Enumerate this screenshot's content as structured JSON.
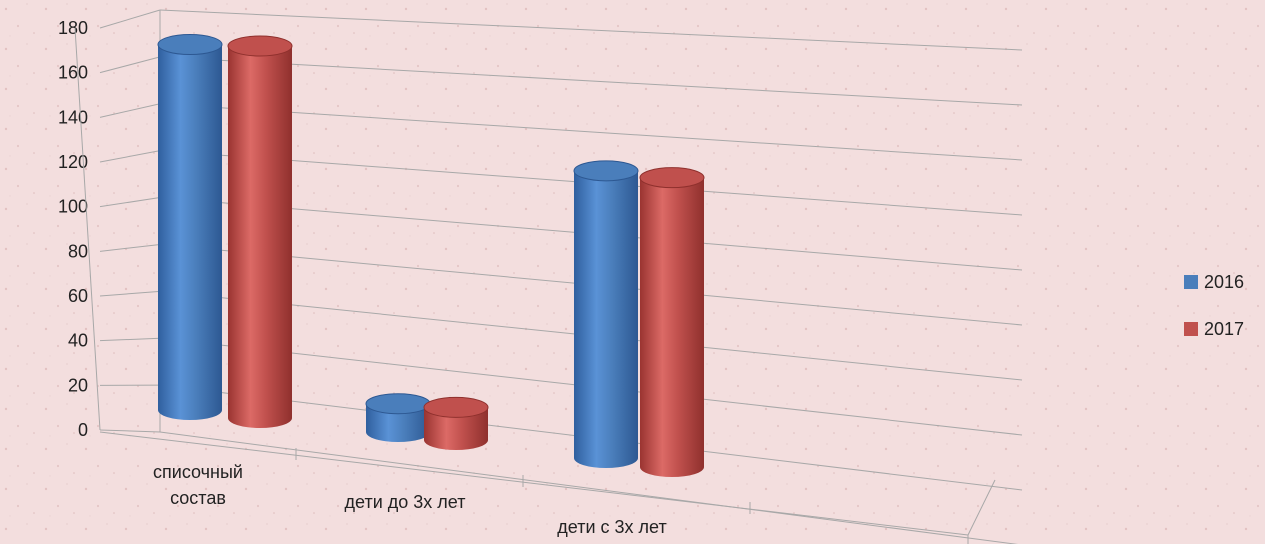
{
  "chart_data": {
    "type": "bar",
    "title": "",
    "xlabel": "",
    "ylabel": "",
    "ylim": [
      0,
      180
    ],
    "yticks": [
      0,
      20,
      40,
      60,
      80,
      100,
      120,
      140,
      160,
      180
    ],
    "categories": [
      [
        "списочный",
        "состав"
      ],
      [
        "дети до 3х лет"
      ],
      [
        "дети с 3х лет"
      ]
    ],
    "series": [
      {
        "name": "2016",
        "color": "#4a7ebb",
        "values": [
          168,
          13,
          132
        ]
      },
      {
        "name": "2017",
        "color": "#c0504d",
        "values": [
          171,
          15,
          133
        ]
      }
    ],
    "legend": "right",
    "grid": true,
    "style": "3d-cylinder"
  }
}
